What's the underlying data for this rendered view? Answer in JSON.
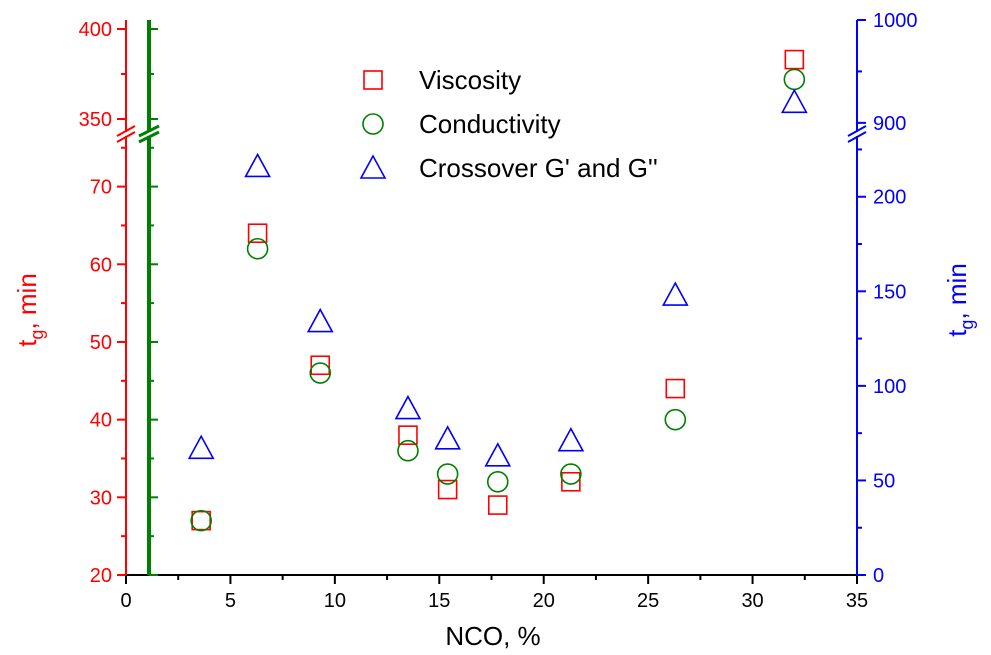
{
  "chart_data": {
    "type": "scatter",
    "x_axis": {
      "label": "NCO, %",
      "range": [
        0,
        35
      ],
      "ticks": [
        0,
        5,
        10,
        15,
        20,
        25,
        30,
        35
      ],
      "tick_labels": [
        "0",
        "5",
        "10",
        "15",
        "20",
        "25",
        "30",
        "35"
      ],
      "color": "#000000"
    },
    "y_left": {
      "label_main": "t",
      "label_sub": "g",
      "label_tail": ", min",
      "color": "#ff0000",
      "broken": true,
      "lower_range": [
        20,
        76
      ],
      "upper_range": [
        345,
        405
      ],
      "ticks": [
        20,
        30,
        40,
        50,
        60,
        70,
        350,
        400
      ],
      "tick_labels": [
        "20",
        "30",
        "40",
        "50",
        "60",
        "70",
        "350",
        "400"
      ]
    },
    "y_right": {
      "label_main": "t",
      "label_sub": "g",
      "label_tail": ", min",
      "color": "#0000ff",
      "broken": true,
      "lower_range": [
        0,
        230
      ],
      "upper_range": [
        895,
        1000
      ],
      "ticks": [
        0,
        50,
        100,
        150,
        200,
        900,
        1000
      ],
      "tick_labels": [
        "0",
        "50",
        "100",
        "150",
        "200",
        "900",
        "1000"
      ]
    },
    "left_spine_color": "#008000",
    "series": [
      {
        "name": "Viscosity",
        "marker": "square",
        "color": "#ff0000",
        "axis": "left",
        "x": [
          3.6,
          6.3,
          9.3,
          13.5,
          15.4,
          17.8,
          21.3,
          26.3,
          32.0
        ],
        "y": [
          27,
          64,
          47,
          38,
          31,
          29,
          32,
          44,
          383
        ]
      },
      {
        "name": "Conductivity",
        "marker": "circle",
        "color": "#008000",
        "axis": "left",
        "x": [
          3.6,
          6.3,
          9.3,
          13.5,
          15.4,
          17.8,
          21.3,
          26.3,
          32.0
        ],
        "y": [
          27,
          62,
          46,
          36,
          33,
          32,
          33,
          40,
          372
        ]
      },
      {
        "name": "Crossover G' and G''",
        "marker": "triangle",
        "color": "#0000ff",
        "axis": "right",
        "x": [
          3.6,
          6.3,
          9.3,
          13.5,
          15.4,
          17.8,
          21.3,
          26.3,
          32.0
        ],
        "y": [
          67,
          216,
          134,
          88,
          72,
          63,
          71,
          148,
          920
        ]
      }
    ],
    "grid": false,
    "legend_position": "top-center"
  }
}
